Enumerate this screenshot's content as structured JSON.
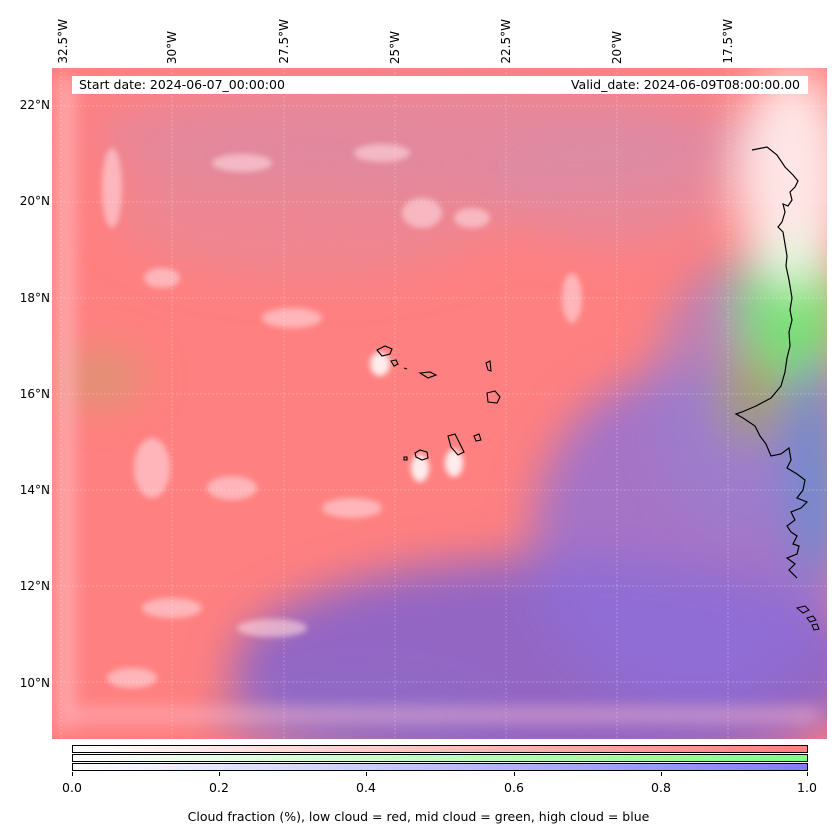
{
  "map": {
    "start_date": "Start date: 2024-06-07_00:00:00",
    "valid_date": "Valid_date: 2024-06-09T08:00:00.00",
    "lon_labels": [
      "32.5°W",
      "30°W",
      "27.5°W",
      "25°W",
      "22.5°W",
      "20°W",
      "17.5°W"
    ],
    "lat_labels": [
      "22°N",
      "20°N",
      "18°N",
      "16°N",
      "14°N",
      "12°N",
      "10°N"
    ],
    "colors": {
      "low_cloud": "#ff7f7f",
      "mid_cloud": "#7fff7f",
      "high_cloud": "#7f7fff",
      "coastline": "#000000"
    }
  },
  "colorbar": {
    "ticks": [
      "0.0",
      "0.2",
      "0.4",
      "0.6",
      "0.8",
      "1.0"
    ],
    "label": "Cloud fraction (%), low cloud = red, mid cloud = green, high cloud = blue"
  }
}
